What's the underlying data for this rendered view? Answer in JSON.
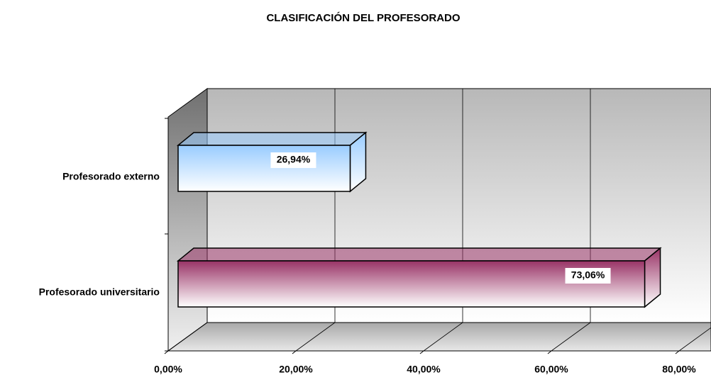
{
  "chart_data": {
    "type": "bar3d_horizontal",
    "title": "CLASIFICACIÓN DEL PROFESORADO",
    "categories": [
      "Profesorado externo",
      "Profesorado universitario"
    ],
    "values": [
      26.94,
      73.06
    ],
    "value_labels": [
      "26,94%",
      "73,06%"
    ],
    "colors": [
      "#99ccff",
      "#993366"
    ],
    "xlim": [
      0,
      80
    ],
    "xticks": [
      {
        "value": 0,
        "label": "0,00%"
      },
      {
        "value": 20,
        "label": "20,00%"
      },
      {
        "value": 40,
        "label": "40,00%"
      },
      {
        "value": 60,
        "label": "60,00%"
      },
      {
        "value": 80,
        "label": "80,00%"
      }
    ],
    "grid": true
  }
}
